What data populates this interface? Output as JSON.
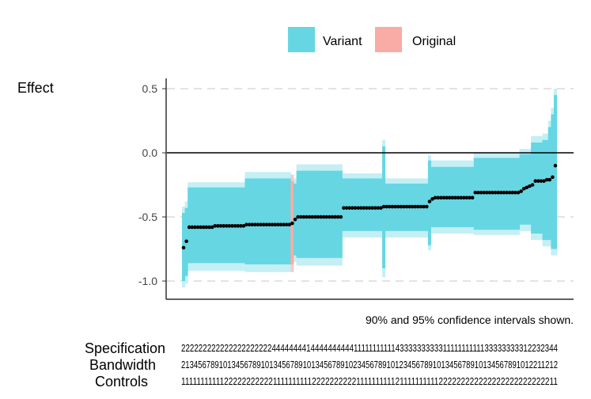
{
  "chart_data": {
    "type": "scatter",
    "title": "",
    "ylabel": "Effect",
    "xlabel": "",
    "ylim": [
      -1.1,
      0.57
    ],
    "y_ticks": [
      0.5,
      0.0,
      -0.5,
      -1.0
    ],
    "y_tick_labels": [
      "0.5",
      "0.0",
      "-0.5",
      "-1.0"
    ],
    "gridlines": "horizontal dashed at y ticks",
    "reference_line": 0,
    "legend": {
      "position": "top",
      "entries": [
        {
          "label": "Variant",
          "color": "#66d6e3"
        },
        {
          "label": "Original",
          "color": "#f8aca5"
        }
      ]
    },
    "caption": "90% and 95% confidence intervals shown.",
    "colors": {
      "ci90": "#66d6e3",
      "ci95": "#c4eff4",
      "original90": "#f8aca5",
      "original95": "#f4cbc7",
      "point": "#000000"
    },
    "original_index": 38,
    "estimates": [
      -0.74,
      -0.69,
      -0.58,
      -0.58,
      -0.58,
      -0.58,
      -0.58,
      -0.58,
      -0.58,
      -0.58,
      -0.58,
      -0.57,
      -0.57,
      -0.57,
      -0.57,
      -0.57,
      -0.57,
      -0.57,
      -0.57,
      -0.57,
      -0.57,
      -0.57,
      -0.56,
      -0.56,
      -0.56,
      -0.56,
      -0.56,
      -0.56,
      -0.56,
      -0.56,
      -0.56,
      -0.56,
      -0.56,
      -0.56,
      -0.56,
      -0.56,
      -0.56,
      -0.56,
      -0.55,
      -0.52,
      -0.5,
      -0.5,
      -0.5,
      -0.5,
      -0.5,
      -0.5,
      -0.5,
      -0.5,
      -0.5,
      -0.5,
      -0.5,
      -0.5,
      -0.5,
      -0.5,
      -0.5,
      -0.5,
      -0.43,
      -0.43,
      -0.43,
      -0.43,
      -0.43,
      -0.43,
      -0.43,
      -0.43,
      -0.43,
      -0.43,
      -0.43,
      -0.43,
      -0.43,
      -0.43,
      -0.42,
      -0.42,
      -0.42,
      -0.42,
      -0.42,
      -0.42,
      -0.42,
      -0.42,
      -0.42,
      -0.42,
      -0.42,
      -0.42,
      -0.42,
      -0.42,
      -0.42,
      -0.42,
      -0.38,
      -0.36,
      -0.35,
      -0.35,
      -0.35,
      -0.35,
      -0.35,
      -0.35,
      -0.35,
      -0.35,
      -0.35,
      -0.35,
      -0.35,
      -0.35,
      -0.35,
      -0.35,
      -0.31,
      -0.31,
      -0.31,
      -0.31,
      -0.31,
      -0.31,
      -0.31,
      -0.31,
      -0.31,
      -0.31,
      -0.31,
      -0.31,
      -0.31,
      -0.31,
      -0.31,
      -0.31,
      -0.3,
      -0.28,
      -0.27,
      -0.26,
      -0.25,
      -0.22,
      -0.22,
      -0.22,
      -0.22,
      -0.21,
      -0.21,
      -0.19,
      -0.1
    ],
    "ci90": [
      [
        -1.0,
        -0.47
      ],
      [
        -0.96,
        -0.43
      ],
      [
        -0.86,
        -0.27
      ],
      [
        -0.86,
        -0.27
      ],
      [
        -0.86,
        -0.27
      ],
      [
        -0.86,
        -0.27
      ],
      [
        -0.86,
        -0.27
      ],
      [
        -0.86,
        -0.27
      ],
      [
        -0.86,
        -0.27
      ],
      [
        -0.86,
        -0.27
      ],
      [
        -0.86,
        -0.27
      ],
      [
        -0.86,
        -0.27
      ],
      [
        -0.86,
        -0.27
      ],
      [
        -0.86,
        -0.27
      ],
      [
        -0.86,
        -0.27
      ],
      [
        -0.86,
        -0.27
      ],
      [
        -0.86,
        -0.27
      ],
      [
        -0.86,
        -0.27
      ],
      [
        -0.86,
        -0.27
      ],
      [
        -0.86,
        -0.27
      ],
      [
        -0.86,
        -0.27
      ],
      [
        -0.86,
        -0.27
      ],
      [
        -0.87,
        -0.2
      ],
      [
        -0.87,
        -0.2
      ],
      [
        -0.87,
        -0.2
      ],
      [
        -0.87,
        -0.2
      ],
      [
        -0.87,
        -0.2
      ],
      [
        -0.87,
        -0.2
      ],
      [
        -0.87,
        -0.2
      ],
      [
        -0.87,
        -0.2
      ],
      [
        -0.87,
        -0.2
      ],
      [
        -0.87,
        -0.2
      ],
      [
        -0.87,
        -0.2
      ],
      [
        -0.87,
        -0.2
      ],
      [
        -0.87,
        -0.2
      ],
      [
        -0.87,
        -0.2
      ],
      [
        -0.87,
        -0.2
      ],
      [
        -0.87,
        -0.2
      ],
      [
        -0.87,
        -0.22
      ],
      [
        -0.8,
        -0.24
      ],
      [
        -0.82,
        -0.14
      ],
      [
        -0.82,
        -0.14
      ],
      [
        -0.82,
        -0.14
      ],
      [
        -0.82,
        -0.14
      ],
      [
        -0.82,
        -0.14
      ],
      [
        -0.82,
        -0.14
      ],
      [
        -0.82,
        -0.14
      ],
      [
        -0.82,
        -0.14
      ],
      [
        -0.82,
        -0.14
      ],
      [
        -0.82,
        -0.14
      ],
      [
        -0.82,
        -0.14
      ],
      [
        -0.82,
        -0.14
      ],
      [
        -0.82,
        -0.14
      ],
      [
        -0.82,
        -0.14
      ],
      [
        -0.82,
        -0.14
      ],
      [
        -0.82,
        -0.14
      ],
      [
        -0.61,
        -0.2
      ],
      [
        -0.61,
        -0.2
      ],
      [
        -0.61,
        -0.2
      ],
      [
        -0.61,
        -0.2
      ],
      [
        -0.61,
        -0.2
      ],
      [
        -0.61,
        -0.2
      ],
      [
        -0.61,
        -0.2
      ],
      [
        -0.61,
        -0.2
      ],
      [
        -0.61,
        -0.2
      ],
      [
        -0.61,
        -0.2
      ],
      [
        -0.61,
        -0.2
      ],
      [
        -0.61,
        -0.2
      ],
      [
        -0.61,
        -0.2
      ],
      [
        -0.61,
        -0.2
      ],
      [
        -0.61,
        -0.24
      ],
      [
        -0.61,
        -0.24
      ],
      [
        -0.61,
        -0.24
      ],
      [
        -0.61,
        -0.24
      ],
      [
        -0.61,
        -0.24
      ],
      [
        -0.61,
        -0.24
      ],
      [
        -0.61,
        -0.24
      ],
      [
        -0.61,
        -0.24
      ],
      [
        -0.61,
        -0.24
      ],
      [
        -0.61,
        -0.24
      ],
      [
        -0.61,
        -0.24
      ],
      [
        -0.61,
        -0.24
      ],
      [
        -0.61,
        -0.24
      ],
      [
        -0.61,
        -0.24
      ],
      [
        -0.61,
        -0.24
      ],
      [
        -0.61,
        -0.24
      ],
      [
        -0.71,
        -0.06
      ],
      [
        -0.58,
        -0.11
      ],
      [
        -0.58,
        -0.11
      ],
      [
        -0.58,
        -0.11
      ],
      [
        -0.58,
        -0.11
      ],
      [
        -0.58,
        -0.11
      ],
      [
        -0.58,
        -0.11
      ],
      [
        -0.58,
        -0.11
      ],
      [
        -0.58,
        -0.11
      ],
      [
        -0.58,
        -0.11
      ],
      [
        -0.58,
        -0.11
      ],
      [
        -0.58,
        -0.11
      ],
      [
        -0.58,
        -0.11
      ],
      [
        -0.58,
        -0.11
      ],
      [
        -0.58,
        -0.11
      ],
      [
        -0.58,
        -0.11
      ],
      [
        -0.6,
        -0.04
      ],
      [
        -0.6,
        -0.04
      ],
      [
        -0.6,
        -0.04
      ],
      [
        -0.6,
        -0.04
      ],
      [
        -0.6,
        -0.04
      ],
      [
        -0.6,
        -0.04
      ],
      [
        -0.6,
        -0.04
      ],
      [
        -0.6,
        -0.04
      ],
      [
        -0.6,
        -0.04
      ],
      [
        -0.6,
        -0.04
      ],
      [
        -0.6,
        -0.04
      ],
      [
        -0.6,
        -0.04
      ],
      [
        -0.6,
        -0.04
      ],
      [
        -0.6,
        -0.04
      ],
      [
        -0.6,
        -0.04
      ],
      [
        -0.6,
        -0.04
      ],
      [
        -0.56,
        -0.01
      ],
      [
        -0.56,
        -0.01
      ],
      [
        -0.56,
        -0.01
      ],
      [
        -0.56,
        -0.01
      ],
      [
        -0.63,
        0.08
      ],
      [
        -0.63,
        0.08
      ],
      [
        -0.63,
        0.08
      ],
      [
        -0.63,
        0.08
      ],
      [
        -0.68,
        0.1
      ],
      [
        -0.68,
        0.1
      ],
      [
        -0.68,
        0.2
      ],
      [
        -0.75,
        0.3
      ],
      [
        -0.75,
        0.45
      ]
    ],
    "ci95": [
      [
        -1.05,
        -0.42
      ],
      [
        -1.02,
        -0.38
      ],
      [
        -0.92,
        -0.23
      ],
      [
        -0.92,
        -0.23
      ],
      [
        -0.92,
        -0.23
      ],
      [
        -0.92,
        -0.23
      ],
      [
        -0.92,
        -0.23
      ],
      [
        -0.92,
        -0.23
      ],
      [
        -0.92,
        -0.23
      ],
      [
        -0.92,
        -0.23
      ],
      [
        -0.92,
        -0.23
      ],
      [
        -0.92,
        -0.23
      ],
      [
        -0.92,
        -0.23
      ],
      [
        -0.92,
        -0.23
      ],
      [
        -0.92,
        -0.23
      ],
      [
        -0.92,
        -0.23
      ],
      [
        -0.92,
        -0.23
      ],
      [
        -0.92,
        -0.23
      ],
      [
        -0.92,
        -0.23
      ],
      [
        -0.92,
        -0.23
      ],
      [
        -0.92,
        -0.23
      ],
      [
        -0.92,
        -0.23
      ],
      [
        -0.93,
        -0.15
      ],
      [
        -0.93,
        -0.15
      ],
      [
        -0.93,
        -0.15
      ],
      [
        -0.93,
        -0.15
      ],
      [
        -0.93,
        -0.15
      ],
      [
        -0.93,
        -0.15
      ],
      [
        -0.93,
        -0.15
      ],
      [
        -0.93,
        -0.15
      ],
      [
        -0.93,
        -0.15
      ],
      [
        -0.93,
        -0.15
      ],
      [
        -0.93,
        -0.15
      ],
      [
        -0.93,
        -0.15
      ],
      [
        -0.93,
        -0.15
      ],
      [
        -0.93,
        -0.15
      ],
      [
        -0.93,
        -0.15
      ],
      [
        -0.93,
        -0.15
      ],
      [
        -0.93,
        -0.17
      ],
      [
        -0.85,
        -0.2
      ],
      [
        -0.88,
        -0.09
      ],
      [
        -0.88,
        -0.09
      ],
      [
        -0.88,
        -0.09
      ],
      [
        -0.88,
        -0.09
      ],
      [
        -0.88,
        -0.09
      ],
      [
        -0.88,
        -0.09
      ],
      [
        -0.88,
        -0.09
      ],
      [
        -0.88,
        -0.09
      ],
      [
        -0.88,
        -0.09
      ],
      [
        -0.88,
        -0.09
      ],
      [
        -0.88,
        -0.09
      ],
      [
        -0.88,
        -0.09
      ],
      [
        -0.88,
        -0.09
      ],
      [
        -0.88,
        -0.09
      ],
      [
        -0.88,
        -0.09
      ],
      [
        -0.88,
        -0.09
      ],
      [
        -0.66,
        -0.16
      ],
      [
        -0.66,
        -0.16
      ],
      [
        -0.66,
        -0.16
      ],
      [
        -0.66,
        -0.16
      ],
      [
        -0.66,
        -0.16
      ],
      [
        -0.66,
        -0.16
      ],
      [
        -0.66,
        -0.16
      ],
      [
        -0.66,
        -0.16
      ],
      [
        -0.66,
        -0.16
      ],
      [
        -0.66,
        -0.16
      ],
      [
        -0.66,
        -0.16
      ],
      [
        -0.66,
        -0.16
      ],
      [
        -0.66,
        -0.16
      ],
      [
        -0.66,
        -0.16
      ],
      [
        -0.66,
        -0.2
      ],
      [
        -0.66,
        -0.2
      ],
      [
        -0.66,
        -0.2
      ],
      [
        -0.66,
        -0.2
      ],
      [
        -0.66,
        -0.2
      ],
      [
        -0.66,
        -0.2
      ],
      [
        -0.66,
        -0.2
      ],
      [
        -0.66,
        -0.2
      ],
      [
        -0.66,
        -0.2
      ],
      [
        -0.66,
        -0.2
      ],
      [
        -0.66,
        -0.2
      ],
      [
        -0.66,
        -0.2
      ],
      [
        -0.66,
        -0.2
      ],
      [
        -0.66,
        -0.2
      ],
      [
        -0.66,
        -0.2
      ],
      [
        -0.66,
        -0.2
      ],
      [
        -0.76,
        -0.02
      ],
      [
        -0.63,
        -0.06
      ],
      [
        -0.63,
        -0.06
      ],
      [
        -0.63,
        -0.06
      ],
      [
        -0.63,
        -0.06
      ],
      [
        -0.63,
        -0.06
      ],
      [
        -0.63,
        -0.06
      ],
      [
        -0.63,
        -0.06
      ],
      [
        -0.63,
        -0.06
      ],
      [
        -0.63,
        -0.06
      ],
      [
        -0.63,
        -0.06
      ],
      [
        -0.63,
        -0.06
      ],
      [
        -0.63,
        -0.06
      ],
      [
        -0.63,
        -0.06
      ],
      [
        -0.63,
        -0.06
      ],
      [
        -0.63,
        -0.06
      ],
      [
        -0.64,
        0.0
      ],
      [
        -0.64,
        0.0
      ],
      [
        -0.64,
        0.0
      ],
      [
        -0.64,
        0.0
      ],
      [
        -0.64,
        0.0
      ],
      [
        -0.64,
        0.0
      ],
      [
        -0.64,
        0.0
      ],
      [
        -0.64,
        0.0
      ],
      [
        -0.64,
        0.0
      ],
      [
        -0.64,
        0.0
      ],
      [
        -0.64,
        0.0
      ],
      [
        -0.64,
        0.0
      ],
      [
        -0.64,
        0.0
      ],
      [
        -0.64,
        0.0
      ],
      [
        -0.64,
        0.0
      ],
      [
        -0.64,
        0.0
      ],
      [
        -0.61,
        0.03
      ],
      [
        -0.61,
        0.03
      ],
      [
        -0.61,
        0.03
      ],
      [
        -0.61,
        0.03
      ],
      [
        -0.68,
        0.13
      ],
      [
        -0.68,
        0.13
      ],
      [
        -0.68,
        0.13
      ],
      [
        -0.68,
        0.13
      ],
      [
        -0.73,
        0.15
      ],
      [
        -0.73,
        0.15
      ],
      [
        -0.73,
        0.25
      ],
      [
        -0.8,
        0.35
      ],
      [
        -0.8,
        0.5
      ]
    ],
    "ci_outliers": [
      {
        "index": 70,
        "ci90": [
          -0.9,
          0.05
        ],
        "ci95": [
          -0.97,
          0.1
        ]
      },
      {
        "index": 86,
        "ci90": [
          -0.72,
          -0.06
        ],
        "ci95": [
          -0.76,
          -0.02
        ]
      }
    ],
    "spec_table": {
      "row_labels": [
        "Specification",
        "Bandwidth",
        "Controls"
      ],
      "rows": [
        "222222222222222222222444444441444444444411111111111433333333331111111111133333333312232344",
        "213456789101345678910134567891013456789102345678910123456789101345678910134567891012211212",
        "111111111112222222222211111111112222222222111111111121111111111222222222222222222222222211"
      ]
    }
  }
}
